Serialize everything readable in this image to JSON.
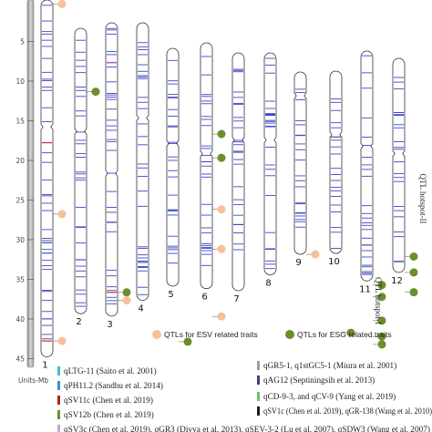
{
  "scale": {
    "ticks": [
      "5",
      "10",
      "15",
      "20",
      "25",
      "30",
      "35",
      "40",
      "45"
    ],
    "units_label": "Units-Mb"
  },
  "chromosomes": [
    {
      "label": "1",
      "length": 45,
      "centromere": 16,
      "colored": [
        {
          "p": 18,
          "c": "red"
        },
        {
          "p": 43,
          "c": "red"
        }
      ]
    },
    {
      "label": "2",
      "length": 36,
      "centromere": 13
    },
    {
      "label": "3",
      "length": 37,
      "centromere": 19,
      "colored": [
        {
          "p": 5,
          "c": "purple"
        },
        {
          "p": 34,
          "c": "red"
        }
      ]
    },
    {
      "label": "4",
      "length": 35,
      "centromere": 12
    },
    {
      "label": "5",
      "length": 30,
      "centromere": 12
    },
    {
      "label": "6",
      "length": 31,
      "centromere": 14
    },
    {
      "label": "7",
      "length": 30,
      "centromere": 11
    },
    {
      "label": "8",
      "length": 28,
      "centromere": 11
    },
    {
      "label": "9",
      "length": 23,
      "centromere": 3
    },
    {
      "label": "10",
      "length": 23,
      "centromere": 8
    },
    {
      "label": "11",
      "length": 29,
      "centromere": 12
    },
    {
      "label": "12",
      "length": 27,
      "centromere": 12
    }
  ],
  "qtl_colors": {
    "esv": "#f5c09a",
    "esg": "#6c8e2c"
  },
  "qtl_markers": [
    {
      "chr": "1",
      "type": "esv",
      "pos": 0.5
    },
    {
      "chr": "1",
      "type": "esv",
      "pos": 27
    },
    {
      "chr": "1",
      "type": "esv",
      "pos": 43
    },
    {
      "chr": "2",
      "type": "esg",
      "pos": 8
    },
    {
      "chr": "3",
      "type": "esg",
      "pos": 34
    },
    {
      "chr": "3",
      "type": "esv",
      "pos": 35
    },
    {
      "chr": "6",
      "type": "esg",
      "pos": 11.5
    },
    {
      "chr": "6",
      "type": "esg",
      "pos": 14.5
    },
    {
      "chr": "6",
      "type": "esv",
      "pos": 21
    },
    {
      "chr": "6",
      "type": "esv",
      "pos": 26
    },
    {
      "chr": "6",
      "type": "esv",
      "pos": 34.5
    },
    {
      "chr": "5",
      "type": "esg",
      "pos": 37
    },
    {
      "chr": "9",
      "type": "esv",
      "pos": 23
    },
    {
      "chr": "10",
      "type": "esg",
      "pos": 33
    },
    {
      "chr": "11",
      "type": "esg",
      "pos": 29.5
    },
    {
      "chr": "11",
      "type": "esg",
      "pos": 31
    },
    {
      "chr": "11",
      "type": "esg",
      "pos": 34
    },
    {
      "chr": "11",
      "type": "esg",
      "pos": 36
    },
    {
      "chr": "11",
      "type": "esg",
      "pos": 37
    },
    {
      "chr": "12",
      "type": "esg",
      "pos": 25
    },
    {
      "chr": "12",
      "type": "esg",
      "pos": 27
    },
    {
      "chr": "12",
      "type": "esg",
      "pos": 29.5
    }
  ],
  "hotspots": [
    {
      "label": "QTL hotspot-I",
      "chr": "11"
    },
    {
      "label": "QTL hotspot-II",
      "chr": "12"
    }
  ],
  "legend": [
    {
      "key": "esv",
      "label": "QTLs for ESV related traits"
    },
    {
      "key": "esg",
      "label": "QTLs for ESG related traits"
    }
  ],
  "references": [
    {
      "color": "#34c6c6",
      "text": "qLTG-11 (Saito et al. 2001)"
    },
    {
      "color": "#9aa0a4",
      "text": "qGR5-1, q1stGC5-1 (Miura et al. 2001)"
    },
    {
      "color": "#3c8ec8",
      "text": "qPH11.2 (Sandhu et al. 2014)"
    },
    {
      "color": "#4b3b78",
      "text": "qAG12 (Septiningsih et al. 2013)"
    },
    {
      "color": "#b0242c",
      "text": "qSV11c (Chen et al. 2019)"
    },
    {
      "color": "#67c06e",
      "text": "qCD-9-3, and qCV-9 (Yang et al. 2019)"
    },
    {
      "color": "#6c8e2c",
      "text": "qSV12b (Chen et al. 2019)"
    },
    {
      "color": "#1f1f1f",
      "text": "qSV1c (Chen et al. 2019), qGR-138 (Wang et al. 2010)"
    },
    {
      "color": "#c2a6d8",
      "text": "qSV3c (Chen et al. 2019), qGR3 (Divya et al. 2013), qSEV-3-2 (Lu et al. 2007), qSDW3 (Wang et al. 2007)"
    }
  ]
}
